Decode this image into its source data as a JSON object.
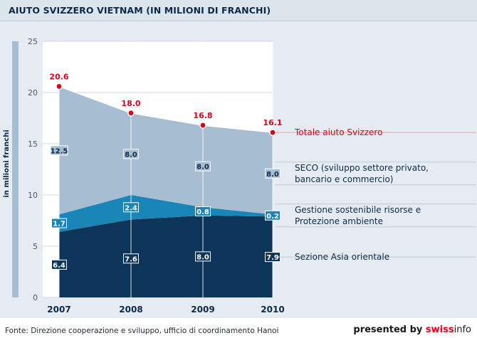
{
  "header": {
    "title": "AIUTO SVIZZERO VIETNAM (IN MILIONI DI FRANCHI)"
  },
  "footer": {
    "source": "Fonte: Direzione cooperazione e sviluppo, ufficio di coordinamento Hanoi",
    "presented_by": "presented by",
    "brand_swiss": "swiss",
    "brand_info": "info"
  },
  "chart_data": {
    "type": "area",
    "stacked": true,
    "x": [
      "2007",
      "2008",
      "2009",
      "2010"
    ],
    "ylabel": "in milioni franchi",
    "ylim": [
      0,
      25
    ],
    "yticks": [
      0,
      5,
      10,
      15,
      20,
      25
    ],
    "grid": true,
    "series": [
      {
        "name": "Sezione Asia orientale",
        "values": [
          6.4,
          7.6,
          8.0,
          7.9
        ],
        "labels": [
          "6.4",
          "7.6",
          "8.0",
          "7.9"
        ],
        "color": "#0d3559"
      },
      {
        "name": "Gestione sostenibile risorse e Protezione ambiente",
        "values": [
          1.7,
          2.4,
          0.8,
          0.2
        ],
        "labels": [
          "1.7",
          "2.4",
          "0.8",
          "0.2"
        ],
        "color": "#1a86b8"
      },
      {
        "name": "SECO (sviluppo settore privato, bancario e commercio)",
        "values": [
          12.5,
          8.0,
          8.0,
          8.0
        ],
        "labels": [
          "12.5",
          "8.0",
          "8.0",
          "8.0"
        ],
        "color": "#a7bdd2"
      }
    ],
    "totals": {
      "name": "Totale aiuto Svizzero",
      "values": [
        20.6,
        18.0,
        16.8,
        16.1
      ],
      "labels": [
        "20.6",
        "18.0",
        "16.8",
        "16.1"
      ],
      "color": "#d9001b"
    },
    "legend_position": "right",
    "legend_labels": {
      "total": "Totale aiuto Svizzero",
      "seco_line1": "SECO (sviluppo settore privato,",
      "seco_line2": "bancario e commercio)",
      "gest_line1": "Gestione sostenibile risorse e",
      "gest_line2": "Protezione ambiente",
      "asia": "Sezione Asia orientale"
    }
  }
}
